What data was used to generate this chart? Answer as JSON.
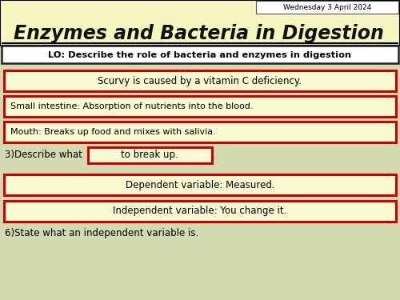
{
  "date_text": "Wednesday 3 April 2024",
  "title": "Enzymes and Bacteria in Digestion",
  "lo_text": "LO: Describe the role of bacteria and enzymes in digestion",
  "bg_color": "#d4d9b0",
  "header_bg": "#f5f5c0",
  "box_bg": "#fafad2",
  "box_border": "#cc0000",
  "title_color": "#111111",
  "answer_boxes": [
    "Scurvy is caused by a vitamin C deficiency.",
    "Small intestine: Absorption of nutrients into the blood.",
    "Mouth: Breaks up food and mixes with salivia.",
    "Dependent variable: Measured.",
    "Independent variable: You change it."
  ],
  "inline_box_text": "to break up.",
  "question3_text": "3)Describe what",
  "question6_text": "6)State what an independent variable is.",
  "lo_bg": "#ffffff",
  "lo_border": "#222222",
  "date_box_bg": "#ffffff",
  "date_box_border": "#555555"
}
